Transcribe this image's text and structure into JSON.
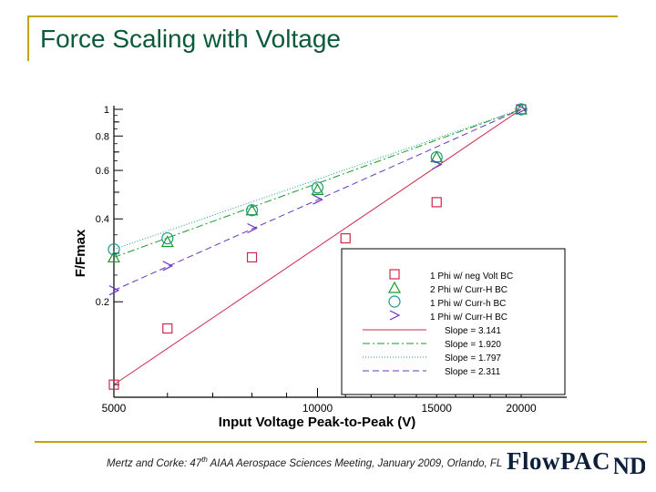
{
  "slide": {
    "title": "Force Scaling with Voltage",
    "citation_pre": "Mertz and Corke: 47",
    "citation_sup": "th",
    "citation_post": " AIAA Aerospace Sciences Meeting, January 2009, Orlando, FL",
    "logo_text": "FlowPAC",
    "logo_mark": "ND",
    "colors": {
      "title": "#0b5a3a",
      "frame": "#c4a400",
      "logo": "#0d1f3a"
    }
  },
  "chart_data": {
    "type": "scatter",
    "xscale": "log",
    "yscale": "log",
    "xlabel": "Input Voltage Peak-to-Peak (V)",
    "ylabel": "F/Fmax",
    "xlim": [
      5000,
      20000
    ],
    "ylim": [
      0.09,
      1
    ],
    "x_ticks": [
      "5000",
      "10000",
      "15000",
      "20000"
    ],
    "y_ticks": [
      "1",
      "0.8",
      "0.6",
      "0.4",
      "0.2"
    ],
    "legend_position": "bottom-right",
    "series": [
      {
        "name": "1 Phi w/ neg Volt BC",
        "marker": "square",
        "color": "#cc2a4a",
        "x": [
          5000,
          6000,
          8000,
          11000,
          15000,
          20000
        ],
        "y": [
          0.1,
          0.16,
          0.29,
          0.34,
          0.46,
          1.0
        ]
      },
      {
        "name": "2 Phi w/ Curr-H BC",
        "marker": "triangle",
        "color": "#1a9a2a",
        "x": [
          5000,
          6000,
          8000,
          10000,
          15000,
          20000
        ],
        "y": [
          0.29,
          0.33,
          0.43,
          0.51,
          0.67,
          1.0
        ]
      },
      {
        "name": "1 Phi w/ Curr-h BC",
        "marker": "circle",
        "color": "#1a9a8a",
        "x": [
          5000,
          6000,
          8000,
          10000,
          15000,
          20000
        ],
        "y": [
          0.31,
          0.34,
          0.43,
          0.52,
          0.67,
          1.0
        ]
      },
      {
        "name": "1 Phi w/ Curr-H BC",
        "marker": "chevron",
        "color": "#6a35c0",
        "x": [
          5000,
          6000,
          8000,
          10000,
          15000,
          20000
        ],
        "y": [
          0.22,
          0.27,
          0.37,
          0.47,
          0.63,
          1.0
        ]
      }
    ],
    "fits": [
      {
        "label": "Slope = 3.141",
        "color": "#cc2a4a",
        "dash": "none",
        "from": [
          5000,
          0.1
        ],
        "to": [
          20000,
          1.0
        ]
      },
      {
        "label": "Slope = 1.920",
        "color": "#1a9a2a",
        "dash": "8 3 2 3",
        "from": [
          5000,
          0.29
        ],
        "to": [
          20000,
          1.0
        ]
      },
      {
        "label": "Slope = 1.797",
        "color": "#1a9a8a",
        "dash": "1 2",
        "from": [
          5000,
          0.31
        ],
        "to": [
          20000,
          1.0
        ]
      },
      {
        "label": "Slope = 2.311",
        "color": "#6a35c0",
        "dash": "7 4",
        "from": [
          5000,
          0.22
        ],
        "to": [
          20000,
          1.0
        ]
      }
    ]
  }
}
